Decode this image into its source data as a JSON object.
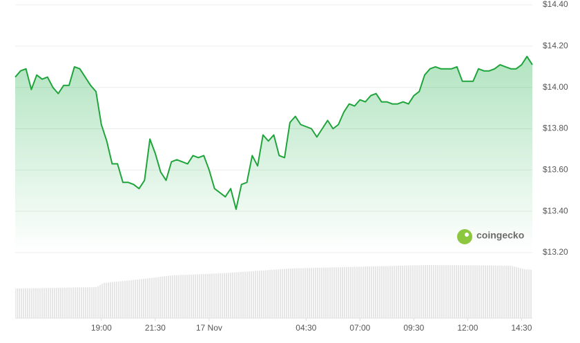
{
  "chart_data": {
    "type": "line",
    "watermark": "coingecko",
    "x": [
      -9,
      -8.75,
      -8.5,
      -8.25,
      -8,
      -7.75,
      -7.5,
      -7.25,
      -7,
      -6.75,
      -6.5,
      -6.25,
      -6,
      -5.75,
      -5.5,
      -5.25,
      -5,
      -4.75,
      -4.5,
      -4.25,
      -4,
      -3.75,
      -3.5,
      -3.25,
      -3,
      -2.75,
      -2.5,
      -2.25,
      -2,
      -1.75,
      -1.5,
      -1.25,
      -1,
      -0.75,
      -0.5,
      -0.25,
      0,
      0.25,
      0.5,
      0.75,
      1,
      1.25,
      1.5,
      1.75,
      2,
      2.25,
      2.5,
      2.75,
      3,
      3.25,
      3.5,
      3.75,
      4,
      4.25,
      4.5,
      4.75,
      5,
      5.25,
      5.5,
      5.75,
      6,
      6.25,
      6.5,
      6.75,
      7,
      7.25,
      7.5,
      7.75,
      8,
      8.25,
      8.5,
      8.75,
      9,
      9.25,
      9.5,
      9.75,
      10,
      10.25,
      10.5,
      10.75,
      11,
      11.25,
      11.5,
      11.75,
      12,
      12.25,
      12.5,
      12.75,
      13,
      13.25,
      13.5,
      13.75,
      14,
      14.25,
      14.5,
      14.75,
      15
    ],
    "series": [
      {
        "color": "#1ea43a",
        "values": [
          14.05,
          14.08,
          14.09,
          13.99,
          14.06,
          14.04,
          14.05,
          14.0,
          13.97,
          14.01,
          14.01,
          14.1,
          14.09,
          14.05,
          14.01,
          13.98,
          13.82,
          13.74,
          13.63,
          13.63,
          13.54,
          13.54,
          13.53,
          13.51,
          13.55,
          13.75,
          13.68,
          13.59,
          13.55,
          13.64,
          13.65,
          13.64,
          13.63,
          13.67,
          13.66,
          13.67,
          13.6,
          13.51,
          13.49,
          13.47,
          13.51,
          13.41,
          13.53,
          13.54,
          13.67,
          13.62,
          13.77,
          13.74,
          13.77,
          13.67,
          13.66,
          13.83,
          13.86,
          13.82,
          13.81,
          13.8,
          13.76,
          13.8,
          13.84,
          13.8,
          13.82,
          13.88,
          13.92,
          13.91,
          13.94,
          13.93,
          13.96,
          13.97,
          13.93,
          13.93,
          13.92,
          13.92,
          13.93,
          13.92,
          13.96,
          13.98,
          14.06,
          14.09,
          14.1,
          14.09,
          14.09,
          14.09,
          14.1,
          14.03,
          14.03,
          14.03,
          14.09,
          14.08,
          14.08,
          14.09,
          14.11,
          14.1,
          14.09,
          14.09,
          14.11,
          14.15,
          14.11
        ]
      }
    ],
    "xlim": [
      -9,
      15
    ],
    "xticks": [
      {
        "value": -5,
        "label": "19:00"
      },
      {
        "value": -2.5,
        "label": "21:30"
      },
      {
        "value": 0,
        "label": "17 Nov"
      },
      {
        "value": 4.5,
        "label": "04:30"
      },
      {
        "value": 7,
        "label": "07:00"
      },
      {
        "value": 9.5,
        "label": "09:30"
      },
      {
        "value": 12,
        "label": "12:00"
      },
      {
        "value": 14.5,
        "label": "14:30"
      }
    ],
    "ylim": [
      13.2,
      14.4
    ],
    "yticks": [
      {
        "value": 13.2,
        "label": "$13.20"
      },
      {
        "value": 13.4,
        "label": "$13.40"
      },
      {
        "value": 13.6,
        "label": "$13.60"
      },
      {
        "value": 13.8,
        "label": "$13.80"
      },
      {
        "value": 14.0,
        "label": "$14.00"
      },
      {
        "value": 14.2,
        "label": "$14.20"
      },
      {
        "value": 14.4,
        "label": "$14.40"
      }
    ],
    "grid": true
  }
}
